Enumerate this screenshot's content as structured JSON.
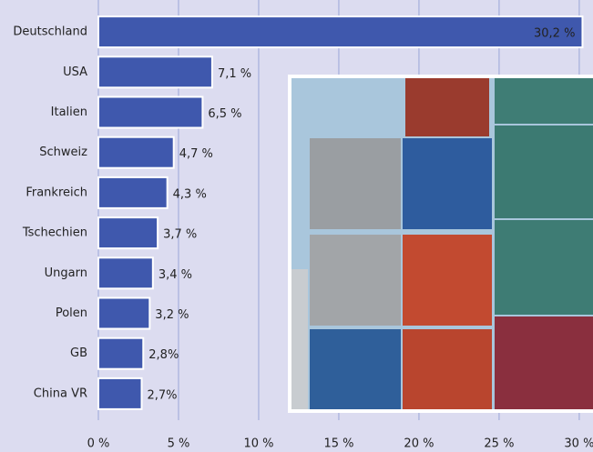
{
  "chart_data": {
    "type": "hbar",
    "categories": [
      "Deutschland",
      "USA",
      "Italien",
      "Schweiz",
      "Frankreich",
      "Tschechien",
      "Ungarn",
      "Polen",
      "GB",
      "China VR"
    ],
    "values": [
      30.2,
      7.1,
      6.5,
      4.7,
      4.3,
      3.7,
      3.4,
      3.2,
      2.8,
      2.7
    ],
    "value_labels": [
      "30,2 %",
      "7,1 %",
      "6,5 %",
      "4,7 %",
      "4,3 %",
      "3,7 %",
      "3,4 %",
      "3,2 %",
      "2,8%",
      "2,7%"
    ],
    "color": "#3f58ad",
    "xlim": [
      0,
      30.8
    ],
    "xticks": [
      {
        "value": 0,
        "label": "0 %"
      },
      {
        "value": 5,
        "label": "5 %"
      },
      {
        "value": 10,
        "label": "10 %"
      },
      {
        "value": 15,
        "label": "15 %"
      },
      {
        "value": 20,
        "label": "20 %"
      },
      {
        "value": 25,
        "label": "25 %"
      },
      {
        "value": 30,
        "label": "30 %"
      }
    ],
    "grid": true
  }
}
